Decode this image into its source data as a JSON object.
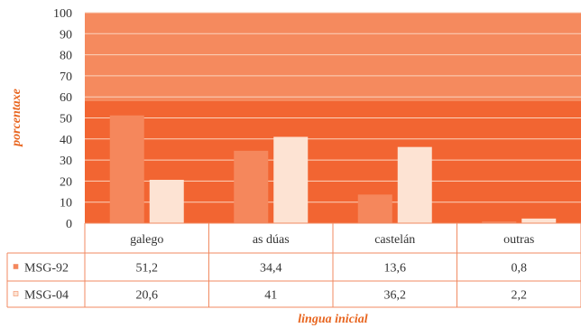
{
  "colors": {
    "plot_bg": "#f26532",
    "plot_bg_top": "#f58a5e",
    "series_1": "#f5875c",
    "series_2": "#fde3d3",
    "grid": "#fbd3bd",
    "table_border": "#f08a62",
    "axis_label": "#e8651f"
  },
  "chart_data": {
    "type": "bar",
    "categories": [
      "galego",
      "as dúas",
      "castelán",
      "outras"
    ],
    "series": [
      {
        "name": "MSG-92",
        "values": [
          51.2,
          34.4,
          13.6,
          0.8
        ],
        "labels": [
          "51,2",
          "34,4",
          "13,6",
          "0,8"
        ]
      },
      {
        "name": "MSG-04",
        "values": [
          20.6,
          41,
          36.2,
          2.2
        ],
        "labels": [
          "20,6",
          "41",
          "36,2",
          "2,2"
        ]
      }
    ],
    "ylim": [
      0,
      100
    ],
    "yticks": [
      "0",
      "10",
      "20",
      "30",
      "40",
      "50",
      "60",
      "70",
      "80",
      "90",
      "100"
    ],
    "xlabel": "lingua inicial",
    "ylabel": "porcentaxe",
    "grid": true,
    "legend": "data-table"
  }
}
